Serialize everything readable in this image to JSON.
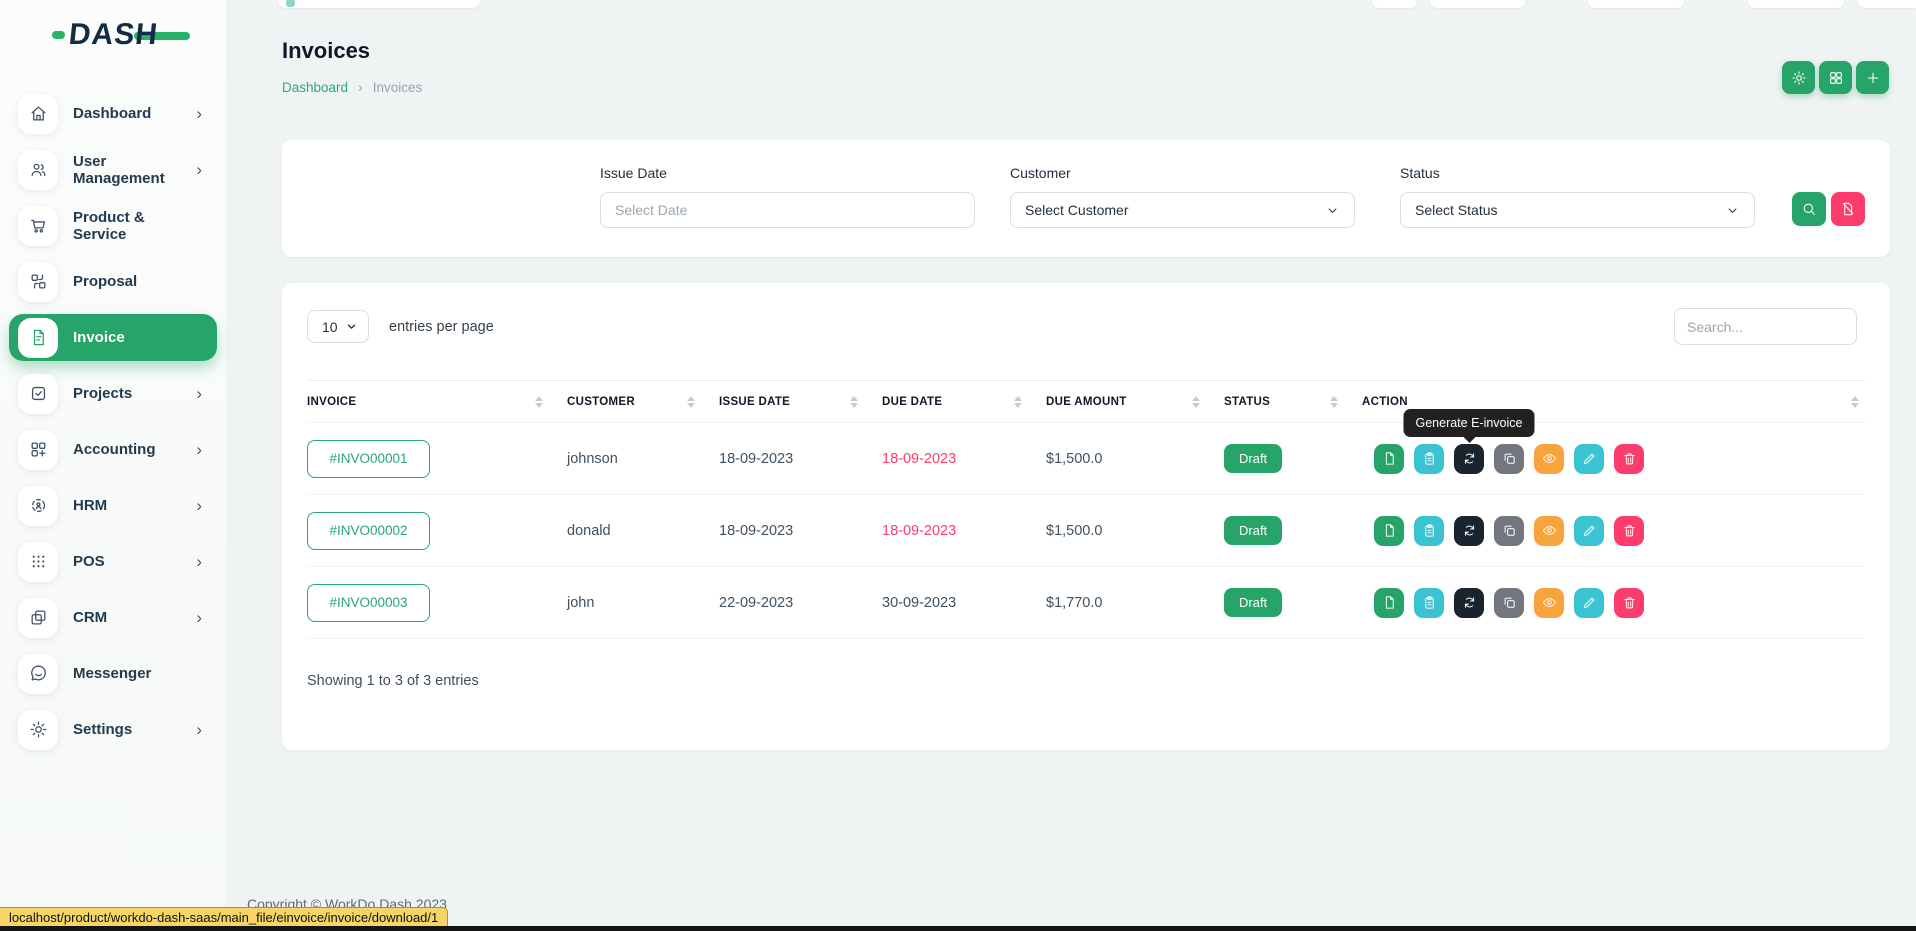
{
  "colors": {
    "primary_green": "#27a468",
    "link_green": "#2ca87f",
    "teal": "#3bc3d1",
    "dark_navy": "#19242f",
    "gray": "#72777f",
    "orange": "#f7a33e",
    "pink": "#fc3c6c",
    "tooltip_bg": "#212121",
    "statusbar_yellow": "#f6d566"
  },
  "sidebar": {
    "logo_text": "DASH",
    "items": [
      {
        "label": "Dashboard",
        "icon": "home-icon",
        "chevron": true,
        "active": false
      },
      {
        "label": "User Management",
        "icon": "users-icon",
        "chevron": true,
        "active": false
      },
      {
        "label": "Product & Service",
        "icon": "cart-icon",
        "chevron": false,
        "active": false
      },
      {
        "label": "Proposal",
        "icon": "proposal-icon",
        "chevron": false,
        "active": false
      },
      {
        "label": "Invoice",
        "icon": "invoice-icon",
        "chevron": false,
        "active": true
      },
      {
        "label": "Projects",
        "icon": "projects-icon",
        "chevron": true,
        "active": false
      },
      {
        "label": "Accounting",
        "icon": "accounting-icon",
        "chevron": true,
        "active": false
      },
      {
        "label": "HRM",
        "icon": "hrm-icon",
        "chevron": true,
        "active": false
      },
      {
        "label": "POS",
        "icon": "pos-icon",
        "chevron": true,
        "active": false
      },
      {
        "label": "CRM",
        "icon": "crm-icon",
        "chevron": true,
        "active": false
      },
      {
        "label": "Messenger",
        "icon": "messenger-icon",
        "chevron": false,
        "active": false
      },
      {
        "label": "Settings",
        "icon": "settings-icon",
        "chevron": true,
        "active": false
      }
    ]
  },
  "page": {
    "title": "Invoices",
    "breadcrumb": {
      "home": "Dashboard",
      "separator": "›",
      "current": "Invoices"
    },
    "header_buttons": [
      {
        "icon": "gear-icon"
      },
      {
        "icon": "grid-icon"
      },
      {
        "icon": "plus-icon"
      }
    ]
  },
  "filters": {
    "issue_date": {
      "label": "Issue Date",
      "placeholder": "Select Date"
    },
    "customer": {
      "label": "Customer",
      "selected": "Select Customer"
    },
    "status": {
      "label": "Status",
      "selected": "Select Status"
    },
    "search_button_icon": "search-icon",
    "reset_button_icon": "file-slash-icon"
  },
  "table": {
    "entries_per_page": "10",
    "entries_label": "entries per page",
    "search_placeholder": "Search...",
    "columns": [
      "INVOICE",
      "CUSTOMER",
      "ISSUE DATE",
      "DUE DATE",
      "DUE AMOUNT",
      "STATUS",
      "ACTION"
    ],
    "rows": [
      {
        "invoice": "#INVO00001",
        "customer": "johnson",
        "issue_date": "18-09-2023",
        "due_date": "18-09-2023",
        "due_overdue": true,
        "due_amount": "$1,500.0",
        "status": "Draft"
      },
      {
        "invoice": "#INVO00002",
        "customer": "donald",
        "issue_date": "18-09-2023",
        "due_date": "18-09-2023",
        "due_overdue": true,
        "due_amount": "$1,500.0",
        "status": "Draft"
      },
      {
        "invoice": "#INVO00003",
        "customer": "john",
        "issue_date": "22-09-2023",
        "due_date": "30-09-2023",
        "due_overdue": false,
        "due_amount": "$1,770.0",
        "status": "Draft"
      }
    ],
    "actions": [
      {
        "icon": "file-icon",
        "color": "green"
      },
      {
        "icon": "clipboard-icon",
        "color": "teal"
      },
      {
        "icon": "sync-icon",
        "color": "dark"
      },
      {
        "icon": "copy-icon",
        "color": "gray"
      },
      {
        "icon": "eye-icon",
        "color": "orange"
      },
      {
        "icon": "pencil-icon",
        "color": "teal"
      },
      {
        "icon": "trash-icon",
        "color": "pink"
      }
    ],
    "action_tooltip": "Generate E-invoice",
    "summary": "Showing 1 to 3 of 3 entries"
  },
  "footer": {
    "copyright": "Copyright © WorkDo Dash 2023"
  },
  "statusbar": {
    "url": "localhost/product/workdo-dash-saas/main_file/einvoice/invoice/download/1"
  }
}
